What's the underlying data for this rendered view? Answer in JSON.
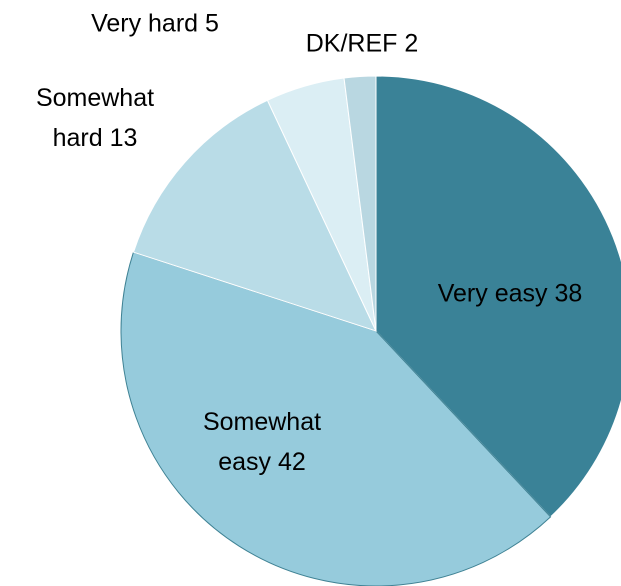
{
  "chart_data": {
    "type": "pie",
    "values": [
      38,
      42,
      13,
      5,
      2
    ],
    "value_labels": [
      "Very easy 38",
      "Somewhat easy 42",
      "Somewhat hard 13",
      "Very hard 5",
      "DK/REF 2"
    ],
    "colors": [
      "#3a8297",
      "#96cbdc",
      "#b9dce7",
      "#dbeef4",
      "#b9d7e1"
    ]
  }
}
